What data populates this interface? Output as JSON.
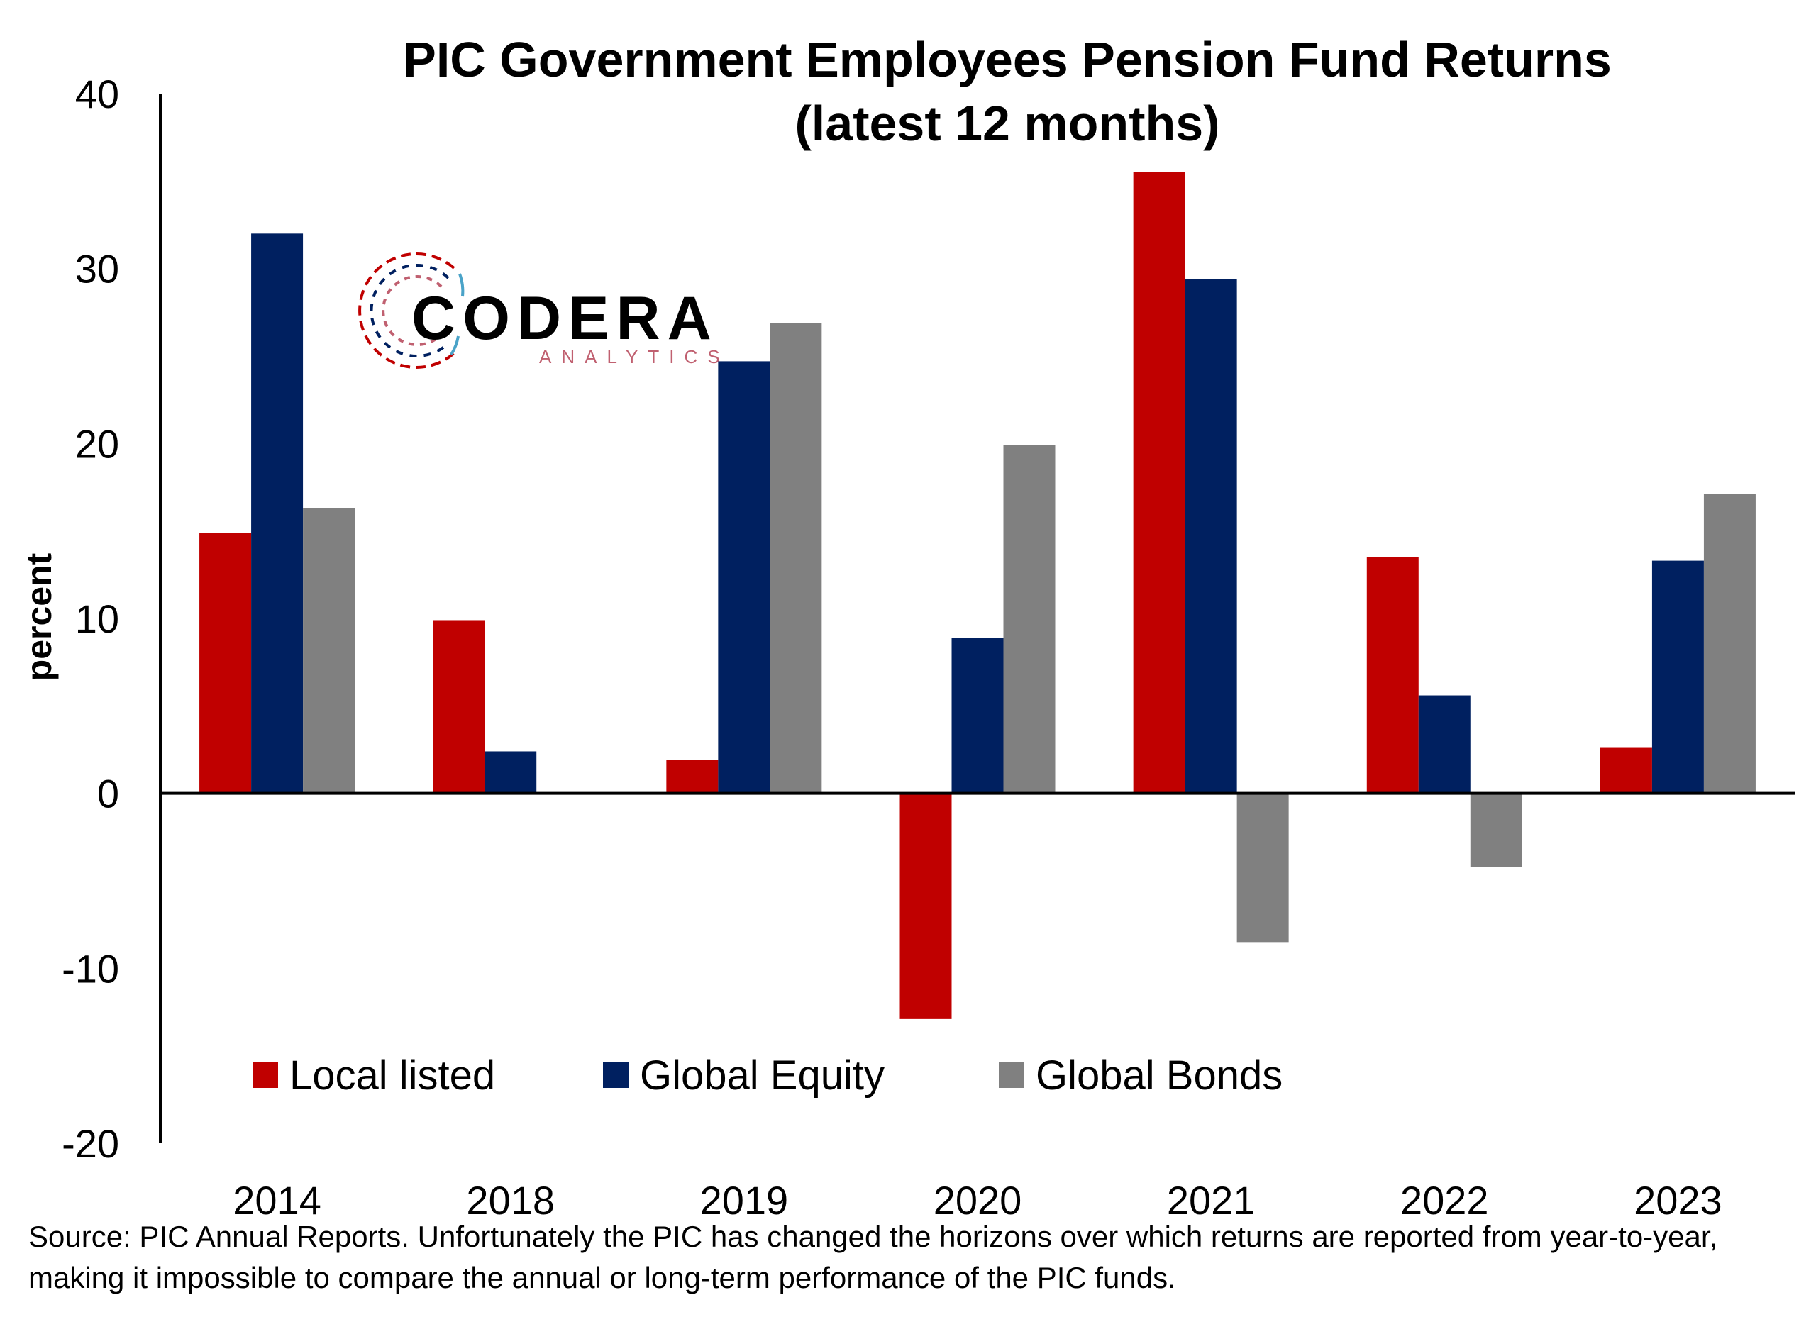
{
  "chart_data": {
    "type": "bar",
    "title": [
      "PIC Government Employees Pension Fund Returns",
      "(latest 12 months)"
    ],
    "ylabel": "percent",
    "xlabel": "",
    "categories": [
      "2014",
      "2018",
      "2019",
      "2020",
      "2021",
      "2022",
      "2023"
    ],
    "ylim": [
      -20,
      40
    ],
    "yticks": [
      40,
      30,
      20,
      10,
      0,
      -10,
      -20
    ],
    "grid": false,
    "legend_position": "bottom-left, inside plot",
    "series": [
      {
        "name": "Local listed",
        "color": "#c00000",
        "values": [
          14.9,
          9.9,
          1.9,
          -12.9,
          35.5,
          13.5,
          2.6
        ]
      },
      {
        "name": "Global Equity",
        "color": "#002060",
        "values": [
          32.0,
          2.4,
          24.7,
          8.9,
          29.4,
          5.6,
          13.3
        ]
      },
      {
        "name": "Global Bonds",
        "color": "#808080",
        "values": [
          16.3,
          null,
          26.9,
          19.9,
          -8.5,
          -4.2,
          17.1
        ]
      }
    ]
  },
  "logo": {
    "word": "CODERA",
    "sub": "ANALYTICS"
  },
  "source_note": "Source: PIC Annual Reports. Unfortunately the PIC has changed the horizons over which returns are reported from year-to-year, making it impossible to compare the annual or long-term performance of the PIC funds.",
  "colors": {
    "local": "#c00000",
    "equity": "#002060",
    "bonds": "#808080",
    "axis": "#000000"
  }
}
